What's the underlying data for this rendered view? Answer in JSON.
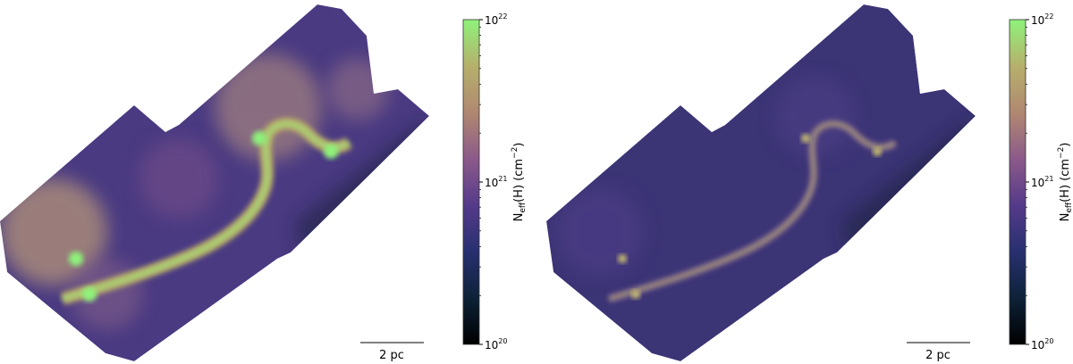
{
  "chart_data": [
    {
      "type": "heatmap",
      "colorbar": {
        "label_main": "N",
        "label_sub": "eff",
        "label_rest": "(H) (cm",
        "label_exp": "−2",
        "label_close": ")",
        "scale": "log",
        "range": [
          1e+20,
          1e+22
        ],
        "ticks": [
          {
            "base": "10",
            "exp": "22"
          },
          {
            "base": "10",
            "exp": "21"
          },
          {
            "base": "10",
            "exp": "20"
          }
        ],
        "colormap": [
          "#000000",
          "#0d2238",
          "#283070",
          "#553a8a",
          "#8c5a8a",
          "#b08870",
          "#b6b06c",
          "#8ef27a"
        ]
      },
      "scale_bar": "2 pc",
      "brightness": "high"
    },
    {
      "type": "heatmap",
      "colorbar": {
        "label_main": "N",
        "label_sub": "eff",
        "label_rest": "(H) (cm",
        "label_exp": "−2",
        "label_close": ")",
        "scale": "log",
        "range": [
          1e+20,
          1e+22
        ],
        "ticks": [
          {
            "base": "10",
            "exp": "22"
          },
          {
            "base": "10",
            "exp": "21"
          },
          {
            "base": "10",
            "exp": "20"
          }
        ],
        "colormap": [
          "#000000",
          "#0d2238",
          "#283070",
          "#553a8a",
          "#8c5a8a",
          "#b08870",
          "#b6b06c",
          "#8ef27a"
        ]
      },
      "scale_bar": "2 pc",
      "brightness": "low"
    }
  ]
}
